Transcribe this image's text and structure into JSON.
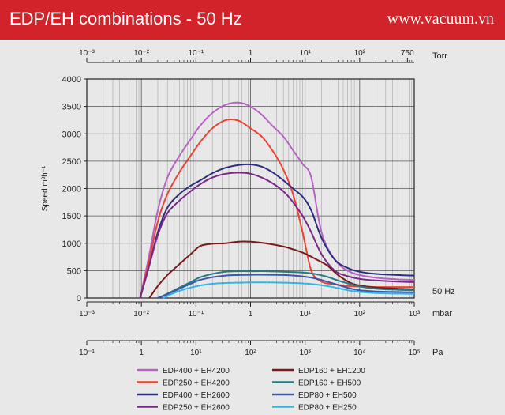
{
  "header": {
    "title": "EDP/EH combinations - 50 Hz",
    "website": "www.vacuum.vn"
  },
  "chart_data": {
    "type": "line",
    "title": "EDP/EH combinations - 50 Hz",
    "ylabel": "Speed m³h⁻¹",
    "xscale": "log",
    "xlim": [
      0.001,
      1000
    ],
    "ylim": [
      0,
      4000
    ],
    "y_ticks": [
      0,
      500,
      1000,
      1500,
      2000,
      2500,
      3000,
      3500,
      4000
    ],
    "y_tick_labels": [
      "0",
      "500",
      "1000",
      "1500",
      "2000",
      "2500",
      "3000",
      "3500",
      "4000"
    ],
    "right_note": "50 Hz",
    "axes": {
      "torr": {
        "unit": "Torr",
        "ticks": [
          0.001,
          0.01,
          0.1,
          1,
          10,
          100,
          750
        ],
        "labels": [
          "10⁻³",
          "10⁻²",
          "10⁻¹",
          "1",
          "10¹",
          "10²",
          "750"
        ]
      },
      "mbar": {
        "unit": "mbar",
        "ticks": [
          0.001,
          0.01,
          0.1,
          1,
          10,
          100,
          1000
        ],
        "labels": [
          "10⁻³",
          "10⁻²",
          "10⁻¹",
          "1",
          "10¹",
          "10²",
          "10³"
        ]
      },
      "pa": {
        "unit": "Pa",
        "ticks": [
          0.1,
          1,
          10,
          100,
          1000,
          10000,
          100000
        ],
        "labels": [
          "10⁻¹",
          "1",
          "10¹",
          "10²",
          "10³",
          "10⁴",
          "10⁵"
        ]
      }
    },
    "series": [
      {
        "name": "EDP400 + EH4200",
        "color": "#b565c0",
        "x": [
          0.0095,
          0.014,
          0.02,
          0.03,
          0.05,
          0.08,
          0.12,
          0.2,
          0.35,
          0.6,
          1,
          1.6,
          2.5,
          4,
          6,
          9,
          13,
          20,
          35,
          60,
          100,
          200,
          500,
          1000
        ],
        "y": [
          0,
          800,
          1600,
          2200,
          2600,
          2900,
          3150,
          3380,
          3530,
          3570,
          3500,
          3350,
          3150,
          2950,
          2700,
          2450,
          2200,
          1200,
          700,
          500,
          420,
          370,
          340,
          330
        ]
      },
      {
        "name": "EDP250 + EH4200",
        "color": "#ea4434",
        "x": [
          0.0095,
          0.014,
          0.02,
          0.03,
          0.05,
          0.08,
          0.12,
          0.2,
          0.35,
          0.6,
          1,
          1.6,
          2.5,
          4,
          6,
          9,
          13,
          20,
          35,
          60,
          100,
          200,
          500,
          1000
        ],
        "y": [
          0,
          700,
          1400,
          1900,
          2300,
          2600,
          2850,
          3100,
          3250,
          3240,
          3100,
          2950,
          2700,
          2350,
          1900,
          1200,
          500,
          300,
          250,
          220,
          210,
          200,
          200,
          200
        ]
      },
      {
        "name": "EDP400 + EH2600",
        "color": "#2b2d7e",
        "x": [
          0.0095,
          0.014,
          0.02,
          0.03,
          0.05,
          0.08,
          0.12,
          0.2,
          0.35,
          0.6,
          1,
          1.6,
          2.5,
          4,
          6,
          9,
          13,
          20,
          35,
          60,
          100,
          200,
          500,
          1000
        ],
        "y": [
          0,
          600,
          1200,
          1650,
          1900,
          2050,
          2150,
          2280,
          2380,
          2430,
          2440,
          2400,
          2300,
          2150,
          2000,
          1850,
          1600,
          1100,
          700,
          550,
          480,
          440,
          420,
          410
        ]
      },
      {
        "name": "EDP250 + EH2600",
        "color": "#7a2888",
        "x": [
          0.0095,
          0.014,
          0.02,
          0.03,
          0.05,
          0.08,
          0.12,
          0.2,
          0.35,
          0.6,
          1,
          1.6,
          2.5,
          4,
          6,
          9,
          13,
          20,
          35,
          60,
          100,
          200,
          500,
          1000
        ],
        "y": [
          0,
          600,
          1150,
          1550,
          1780,
          1950,
          2080,
          2200,
          2270,
          2290,
          2270,
          2200,
          2100,
          1950,
          1750,
          1500,
          1200,
          800,
          500,
          400,
          350,
          320,
          300,
          290
        ]
      },
      {
        "name": "EDP160 + EH1200",
        "color": "#7b1a1c",
        "x": [
          0.014,
          0.02,
          0.03,
          0.05,
          0.08,
          0.12,
          0.2,
          0.35,
          0.6,
          1,
          1.6,
          2.5,
          4,
          6,
          10,
          15,
          25,
          40,
          70,
          100,
          200,
          500,
          1000
        ],
        "y": [
          0,
          220,
          420,
          620,
          800,
          950,
          990,
          1000,
          1030,
          1030,
          1010,
          980,
          940,
          890,
          810,
          720,
          600,
          420,
          270,
          230,
          190,
          170,
          160
        ]
      },
      {
        "name": "EDP160 + EH500",
        "color": "#277a80",
        "x": [
          0.02,
          0.03,
          0.05,
          0.08,
          0.12,
          0.2,
          0.35,
          0.6,
          1,
          2,
          4,
          8,
          15,
          25,
          40,
          70,
          100,
          200,
          500,
          1000
        ],
        "y": [
          0,
          80,
          190,
          290,
          380,
          440,
          480,
          490,
          490,
          490,
          480,
          470,
          440,
          390,
          320,
          250,
          210,
          170,
          150,
          140
        ]
      },
      {
        "name": "EDP80 + EH500",
        "color": "#3d56a6",
        "x": [
          0.02,
          0.03,
          0.05,
          0.08,
          0.12,
          0.2,
          0.35,
          0.6,
          1,
          2,
          4,
          8,
          15,
          25,
          40,
          70,
          100,
          200,
          500,
          1000
        ],
        "y": [
          0,
          70,
          170,
          260,
          330,
          380,
          410,
          420,
          425,
          425,
          420,
          400,
          360,
          300,
          240,
          170,
          140,
          120,
          110,
          100
        ]
      },
      {
        "name": "EDP80 + EH250",
        "color": "#2db6e6",
        "x": [
          0.025,
          0.035,
          0.05,
          0.08,
          0.12,
          0.2,
          0.35,
          0.6,
          1,
          2,
          4,
          8,
          15,
          25,
          40,
          70,
          100,
          200,
          500,
          1000
        ],
        "y": [
          0,
          70,
          130,
          190,
          230,
          260,
          275,
          280,
          285,
          285,
          280,
          270,
          250,
          220,
          180,
          130,
          110,
          90,
          80,
          75
        ]
      }
    ]
  }
}
